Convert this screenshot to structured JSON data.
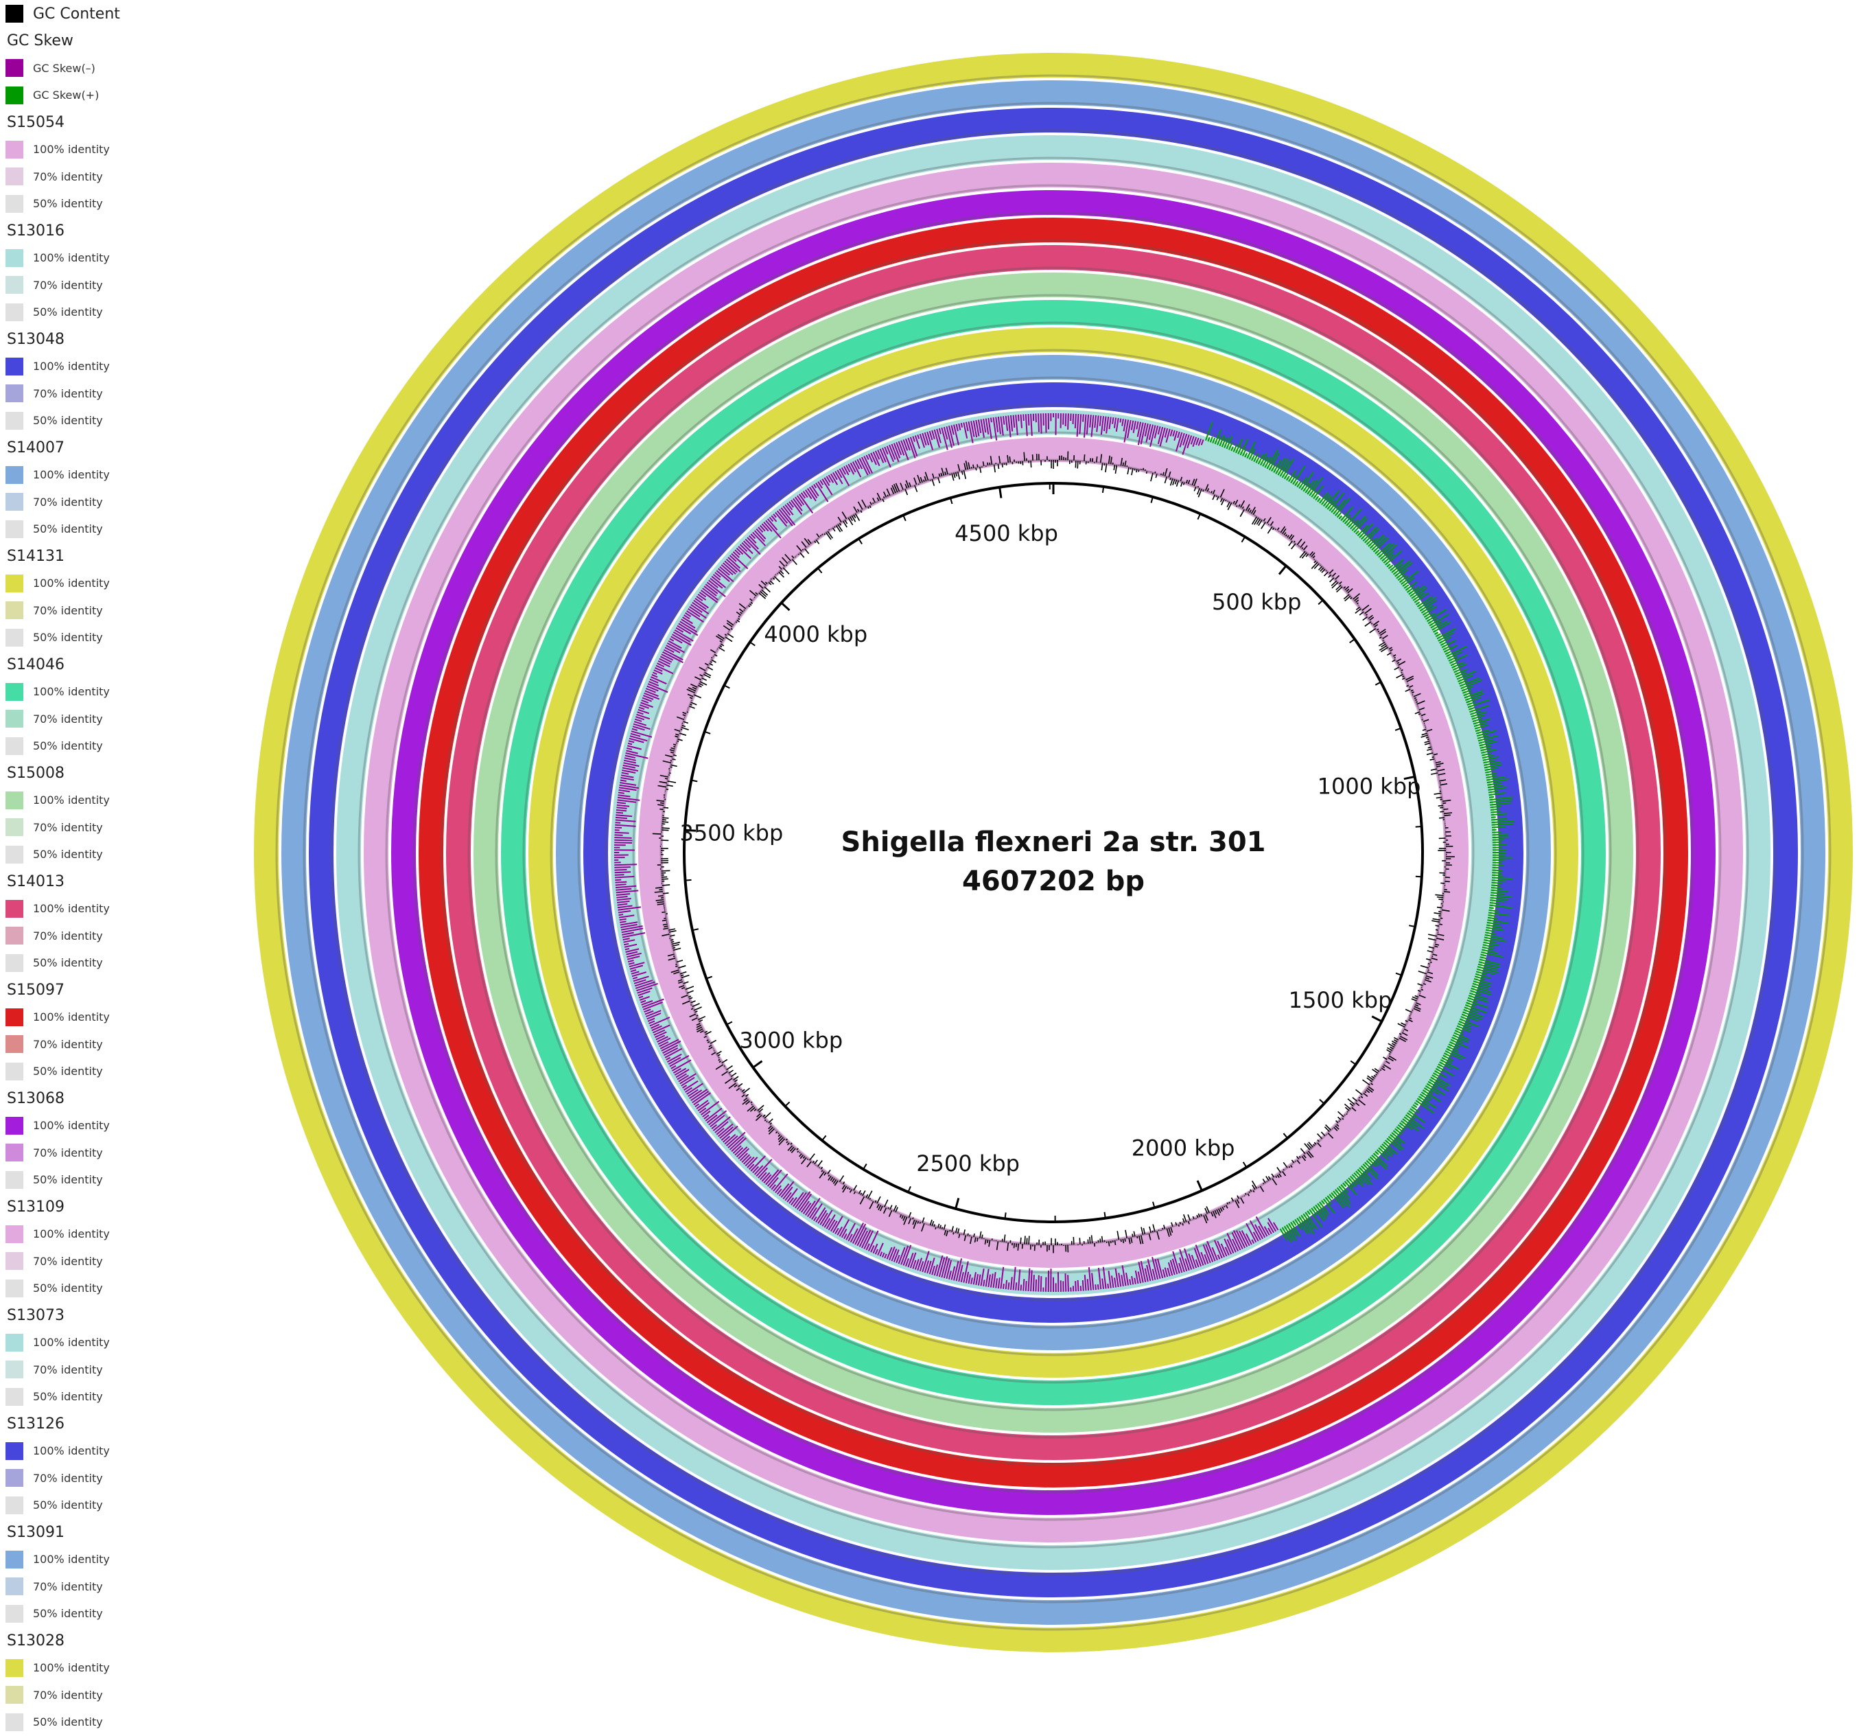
{
  "title": "Shigella flexneri 2a str. 301",
  "genome_size_label": "4607202 bp",
  "genome_length_bp": 4607202,
  "axis_ticks": [
    {
      "kbp": 500,
      "label": "500 kbp"
    },
    {
      "kbp": 1000,
      "label": "1000 kbp"
    },
    {
      "kbp": 1500,
      "label": "1500 kbp"
    },
    {
      "kbp": 2000,
      "label": "2000 kbp"
    },
    {
      "kbp": 2500,
      "label": "2500 kbp"
    },
    {
      "kbp": 3000,
      "label": "3000 kbp"
    },
    {
      "kbp": 3500,
      "label": "3500 kbp"
    },
    {
      "kbp": 4000,
      "label": "4000 kbp"
    },
    {
      "kbp": 4500,
      "label": "4500 kbp"
    }
  ],
  "legend": {
    "gc_content": {
      "label": "GC Content",
      "color": "#000000"
    },
    "gc_skew": {
      "label": "GC Skew",
      "minus": {
        "label": "GC Skew(–)",
        "color": "#990099"
      },
      "plus": {
        "label": "GC Skew(+)",
        "color": "#009900"
      }
    },
    "identity_labels": [
      "100% identity",
      "70% identity",
      "50% identity"
    ],
    "strains": [
      {
        "name": "S15054",
        "colors": [
          "#e2a9df",
          "#e3cbe1",
          "#e0e0e0"
        ]
      },
      {
        "name": "S13016",
        "colors": [
          "#a9dedd",
          "#cbe2e0",
          "#e0e0e0"
        ]
      },
      {
        "name": "S13048",
        "colors": [
          "#4646dc",
          "#a5a5dc",
          "#e0e0e0"
        ]
      },
      {
        "name": "S14007",
        "colors": [
          "#7ea9dc",
          "#bacde2",
          "#e0e0e0"
        ]
      },
      {
        "name": "S14131",
        "colors": [
          "#dcdc46",
          "#dcdca5",
          "#e0e0e0"
        ]
      },
      {
        "name": "S14046",
        "colors": [
          "#46dca5",
          "#a5dcc5",
          "#e0e0e0"
        ]
      },
      {
        "name": "S15008",
        "colors": [
          "#a9dca9",
          "#cbe2cb",
          "#e0e0e0"
        ]
      },
      {
        "name": "S14013",
        "colors": [
          "#dc4678",
          "#dca5b8",
          "#e0e0e0"
        ]
      },
      {
        "name": "S15097",
        "colors": [
          "#dc1e1e",
          "#dc8a8a",
          "#e0e0e0"
        ]
      },
      {
        "name": "S13068",
        "colors": [
          "#a31edc",
          "#cf8adc",
          "#e0e0e0"
        ]
      },
      {
        "name": "S13109",
        "colors": [
          "#e2a9df",
          "#e3cbe1",
          "#e0e0e0"
        ]
      },
      {
        "name": "S13073",
        "colors": [
          "#a9dedd",
          "#cbe2e0",
          "#e0e0e0"
        ]
      },
      {
        "name": "S13126",
        "colors": [
          "#4646dc",
          "#a5a5dc",
          "#e0e0e0"
        ]
      },
      {
        "name": "S13091",
        "colors": [
          "#7ea9dc",
          "#bacde2",
          "#e0e0e0"
        ]
      },
      {
        "name": "S13028",
        "colors": [
          "#dcdc46",
          "#dcdca5",
          "#e0e0e0"
        ]
      }
    ]
  }
}
